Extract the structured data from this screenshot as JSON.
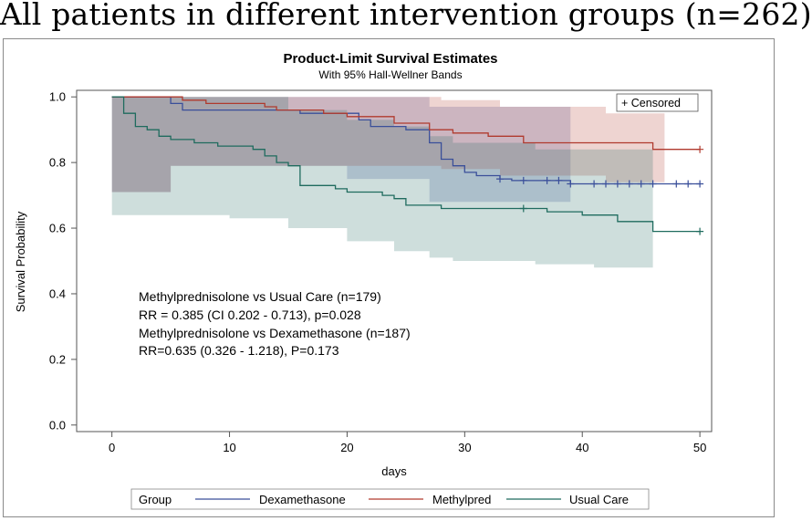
{
  "figure_title": "All patients in different intervention groups (n=262)",
  "chart_data": {
    "type": "line",
    "title": "Product-Limit Survival Estimates",
    "subtitle": "With 95% Hall-Wellner Bands",
    "xlabel": "days",
    "ylabel": "Survival Probability",
    "xlim": [
      -3,
      51
    ],
    "ylim": [
      -0.02,
      1.02
    ],
    "x_ticks": [
      0,
      10,
      20,
      30,
      40,
      50
    ],
    "y_ticks": [
      0.0,
      0.2,
      0.4,
      0.6,
      0.8,
      1.0
    ],
    "x_tick_labels": [
      "0",
      "10",
      "20",
      "30",
      "40",
      "50"
    ],
    "y_tick_labels": [
      "0.0",
      "0.2",
      "0.4",
      "0.6",
      "0.8",
      "1.0"
    ],
    "censored_legend": "+ Censored",
    "annotations": [
      "Methylprednisolone vs Usual Care (n=179)",
      "RR = 0.385 (CI 0.202 - 0.713), p=0.028",
      "Methylprednisolone vs Dexamethasone (n=187)",
      "RR=0.635 (0.326 - 1.218), P=0.173"
    ],
    "legend": {
      "title": "Group",
      "entries": [
        "Dexamethasone",
        "Methylpred",
        "Usual Care"
      ],
      "placement": "bottom"
    },
    "series": [
      {
        "name": "Dexamethasone",
        "color": "#3a4f9a",
        "step_x": [
          0,
          5,
          6,
          12,
          16,
          18,
          21,
          22,
          25,
          27,
          28,
          29,
          30,
          31,
          33,
          34,
          39,
          50
        ],
        "step_y": [
          1.0,
          0.98,
          0.96,
          0.96,
          0.95,
          0.95,
          0.93,
          0.91,
          0.9,
          0.86,
          0.81,
          0.79,
          0.77,
          0.76,
          0.75,
          0.745,
          0.735,
          0.735
        ],
        "censored_x": [
          33,
          35,
          37,
          38,
          39,
          41,
          42,
          43,
          44,
          45,
          46,
          48,
          49,
          50
        ],
        "band_x": [
          0,
          5,
          20,
          27,
          39
        ],
        "band_upper": [
          1.0,
          1.0,
          1.0,
          0.97,
          0.93
        ],
        "band_lower": [
          0.71,
          0.79,
          0.75,
          0.68,
          0.61
        ]
      },
      {
        "name": "Methylpred",
        "color": "#b03a2e",
        "step_x": [
          0,
          6,
          8,
          13,
          14,
          18,
          20,
          24,
          27,
          29,
          32,
          35,
          42,
          46,
          50
        ],
        "step_y": [
          1.0,
          0.99,
          0.98,
          0.97,
          0.96,
          0.95,
          0.94,
          0.92,
          0.9,
          0.89,
          0.88,
          0.86,
          0.86,
          0.84,
          0.84
        ],
        "censored_x": [
          50
        ],
        "band_x": [
          0,
          5,
          11,
          16,
          20,
          25,
          28,
          33,
          42,
          47
        ],
        "band_upper": [
          1.0,
          1.0,
          1.0,
          1.0,
          1.0,
          1.0,
          0.99,
          0.97,
          0.95,
          0.95
        ],
        "band_lower": [
          0.71,
          0.79,
          0.79,
          0.79,
          0.79,
          0.79,
          0.78,
          0.76,
          0.74,
          0.74
        ]
      },
      {
        "name": "Usual Care",
        "color": "#1f6b5e",
        "step_x": [
          0,
          1,
          2,
          3,
          4,
          5,
          7,
          9,
          12,
          13,
          14,
          15,
          16,
          19,
          20,
          23,
          24,
          25,
          28,
          32,
          35,
          37,
          40,
          43,
          46,
          50
        ],
        "step_y": [
          1.0,
          0.95,
          0.91,
          0.9,
          0.88,
          0.87,
          0.86,
          0.85,
          0.84,
          0.82,
          0.8,
          0.79,
          0.73,
          0.72,
          0.71,
          0.7,
          0.69,
          0.67,
          0.66,
          0.66,
          0.66,
          0.65,
          0.64,
          0.62,
          0.59,
          0.59
        ],
        "censored_x": [
          35,
          50
        ],
        "band_x": [
          0,
          5,
          10,
          15,
          20,
          24,
          27,
          29,
          36,
          41,
          46
        ],
        "band_upper": [
          1.0,
          1.0,
          1.0,
          0.96,
          0.93,
          0.91,
          0.88,
          0.86,
          0.84,
          0.84,
          0.84
        ],
        "band_lower": [
          0.64,
          0.64,
          0.63,
          0.6,
          0.56,
          0.53,
          0.51,
          0.5,
          0.49,
          0.48,
          0.46
        ]
      }
    ]
  }
}
